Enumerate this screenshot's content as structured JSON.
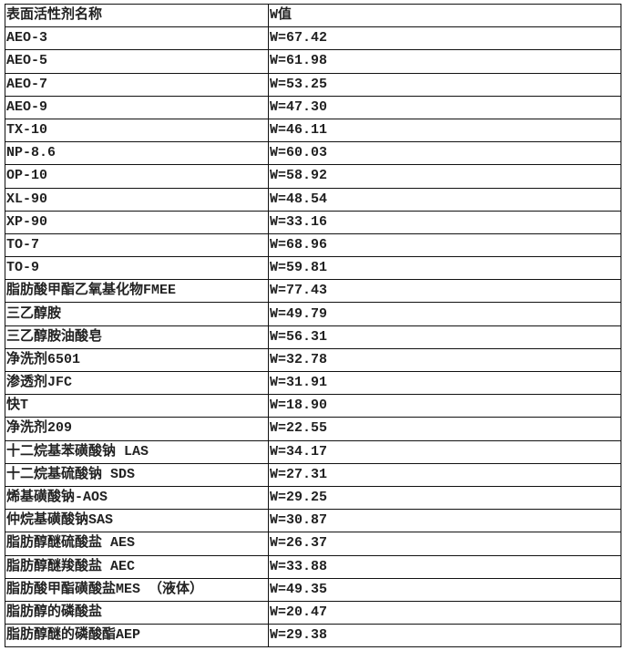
{
  "table": {
    "headers": [
      "表面活性剂名称",
      "W值"
    ],
    "rows": [
      [
        "AEO-3",
        "W=67.42"
      ],
      [
        "AEO-5",
        "W=61.98"
      ],
      [
        "AEO-7",
        "W=53.25"
      ],
      [
        "AEO-9",
        "W=47.30"
      ],
      [
        "TX-10",
        "W=46.11"
      ],
      [
        "NP-8.6",
        "W=60.03"
      ],
      [
        "OP-10",
        "W=58.92"
      ],
      [
        "XL-90",
        "W=48.54"
      ],
      [
        "XP-90",
        "W=33.16"
      ],
      [
        "TO-7",
        "W=68.96"
      ],
      [
        "TO-9",
        "W=59.81"
      ],
      [
        "脂肪酸甲酯乙氧基化物FMEE",
        "W=77.43"
      ],
      [
        "三乙醇胺",
        "W=49.79"
      ],
      [
        "三乙醇胺油酸皂",
        "W=56.31"
      ],
      [
        "净洗剂6501",
        "W=32.78"
      ],
      [
        "渗透剂JFC",
        "W=31.91"
      ],
      [
        "快T",
        "W=18.90"
      ],
      [
        "净洗剂209",
        "W=22.55"
      ],
      [
        "十二烷基苯磺酸钠 LAS",
        "W=34.17"
      ],
      [
        "十二烷基硫酸钠 SDS",
        "W=27.31"
      ],
      [
        "烯基磺酸钠-AOS",
        "W=29.25"
      ],
      [
        "仲烷基磺酸钠SAS",
        "W=30.87"
      ],
      [
        "脂肪醇醚硫酸盐 AES",
        "W=26.37"
      ],
      [
        "脂肪醇醚羧酸盐 AEC",
        "W=33.88"
      ],
      [
        "脂肪酸甲酯磺酸盐MES （液体）",
        "W=49.35"
      ],
      [
        "脂肪醇的磷酸盐",
        "W=20.47"
      ],
      [
        "脂肪醇醚的磷酸酯AEP",
        "W=29.38"
      ]
    ]
  }
}
